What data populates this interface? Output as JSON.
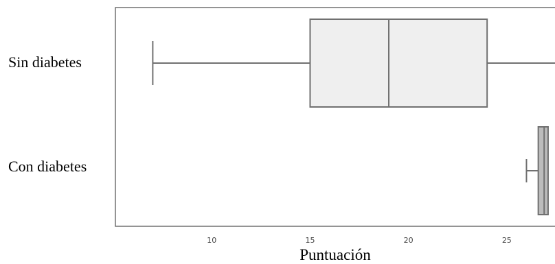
{
  "chart_data": {
    "type": "boxplot",
    "orientation": "horizontal",
    "title": "",
    "xlabel": "Puntuación",
    "ylabel": "",
    "xlim": [
      5.1,
      27.8
    ],
    "x_ticks": [
      10,
      15,
      20,
      25
    ],
    "categories": [
      "Sin diabetes",
      "Con diabetes"
    ],
    "boxes": [
      {
        "category": "Sin diabetes",
        "whisker_low": 7,
        "q1": 15,
        "median": 19,
        "q3": 24,
        "whisker_high": 28,
        "fill": "#efefef"
      },
      {
        "category": "Con diabetes",
        "whisker_low": 26,
        "q1": 26.6,
        "median": 26.9,
        "q3": 27.1,
        "whisker_high": 27.1,
        "fill": "#bcbcbc"
      }
    ],
    "stroke_color": "#707070",
    "grid": false,
    "legend": "none"
  }
}
